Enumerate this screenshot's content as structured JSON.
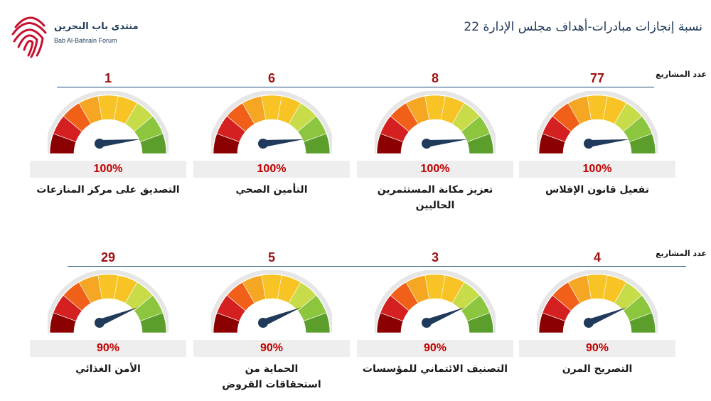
{
  "header": {
    "title": "نسبة إنجازات مبادرات-أهداف مجلس الإدارة 22",
    "logo_ar": "منتدى باب البحرين",
    "logo_en": "Bab Al-Bahrain Forum"
  },
  "rows": {
    "label": "عدد المشاريع"
  },
  "gauges": [
    {
      "count": "77",
      "percent_text": "100%",
      "percent": 100,
      "name": "تفعيل قانون الإفلاس"
    },
    {
      "count": "8",
      "percent_text": "100%",
      "percent": 100,
      "name": "تعزيز مكانة المستثمرين الحاليين"
    },
    {
      "count": "6",
      "percent_text": "100%",
      "percent": 100,
      "name": "التأمين الصحي"
    },
    {
      "count": "1",
      "percent_text": "100%",
      "percent": 100,
      "name": "التصديق على مركز المنازعات"
    },
    {
      "count": "4",
      "percent_text": "90%",
      "percent": 90,
      "name": "التصريح المرن"
    },
    {
      "count": "3",
      "percent_text": "90%",
      "percent": 90,
      "name": "التصنيف الائتماني للمؤسسات"
    },
    {
      "count": "5",
      "percent_text": "90%",
      "percent": 90,
      "name": "الحماية من استحقاقات القروض"
    },
    {
      "count": "29",
      "percent_text": "90%",
      "percent": 90,
      "name": "الأمن الغذائي"
    }
  ],
  "colors": {
    "segments": [
      "#8b0000",
      "#d42020",
      "#f06018",
      "#f5a623",
      "#f7c325",
      "#f7c325",
      "#c8dc4a",
      "#8cc63f",
      "#5c9e2c"
    ],
    "needle": "#1f3a5a",
    "title": "#1f3a5a",
    "count": "#a01010",
    "percent": "#c00000",
    "logo_mark": "#c8102e"
  }
}
